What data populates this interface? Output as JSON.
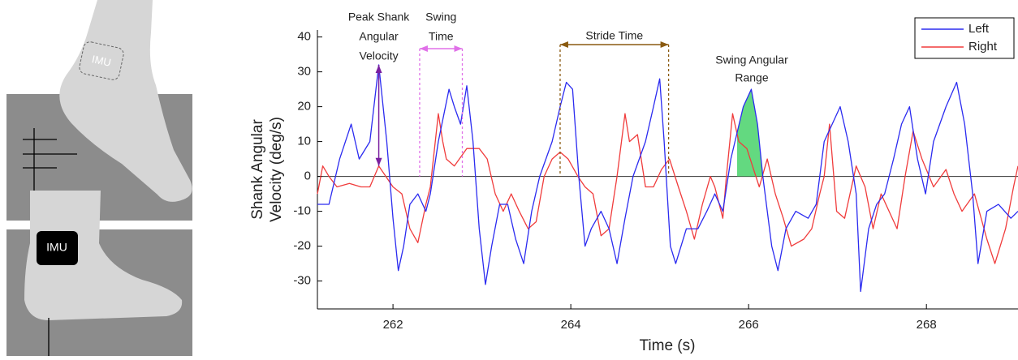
{
  "illustration": {
    "imu_labels": [
      "IMU",
      "IMU"
    ]
  },
  "chart_data": {
    "type": "line",
    "xlabel": "Time (s)",
    "ylabel": [
      "Shank Angular",
      "Velocity (deg/s)"
    ],
    "xlim": [
      261.15,
      269.03
    ],
    "xticks": [
      262,
      264,
      266,
      268
    ],
    "ylim": [
      -38,
      42
    ],
    "yticks": [
      -30,
      -20,
      -10,
      0,
      10,
      20,
      30,
      40
    ],
    "grid": false,
    "legend": "upper right",
    "series": [
      {
        "name": "Left",
        "color": "#2b2bf0",
        "x": [
          261.15,
          261.28,
          261.4,
          261.53,
          261.62,
          261.74,
          261.84,
          261.93,
          262.0,
          262.06,
          262.12,
          262.19,
          262.28,
          262.37,
          262.42,
          262.51,
          262.63,
          262.69,
          262.76,
          262.83,
          262.9,
          262.97,
          263.04,
          263.11,
          263.2,
          263.29,
          263.38,
          263.47,
          263.56,
          263.65,
          263.79,
          263.88,
          263.95,
          264.02,
          264.09,
          264.16,
          264.23,
          264.34,
          264.43,
          264.52,
          264.61,
          264.7,
          264.84,
          264.93,
          265.0,
          265.05,
          265.12,
          265.18,
          265.3,
          265.43,
          265.53,
          265.62,
          265.71,
          265.8,
          265.94,
          266.03,
          266.1,
          266.16,
          266.26,
          266.33,
          266.42,
          266.53,
          266.67,
          266.76,
          266.85,
          266.94,
          267.03,
          267.12,
          267.21,
          267.26,
          267.35,
          267.44,
          267.53,
          267.63,
          267.72,
          267.81,
          267.9,
          267.99,
          268.08,
          268.22,
          268.34,
          268.43,
          268.52,
          268.58,
          268.68,
          268.81,
          268.95,
          269.03
        ],
        "values": [
          -8,
          -8,
          5,
          15,
          5,
          10,
          32,
          10,
          -12,
          -27,
          -20,
          -8,
          -5,
          -10,
          -5,
          10,
          25,
          20,
          15,
          26,
          10,
          -15,
          -31,
          -20,
          -8,
          -8,
          -18,
          -25,
          -10,
          0,
          10,
          20,
          27,
          25,
          0,
          -20,
          -15,
          -10,
          -15,
          -25,
          -12,
          0,
          10,
          20,
          28,
          10,
          -20,
          -25,
          -15,
          -15,
          -10,
          -5,
          -10,
          5,
          20,
          25,
          15,
          0,
          -20,
          -27,
          -15,
          -10,
          -12,
          -8,
          10,
          15,
          20,
          10,
          -5,
          -33,
          -15,
          -8,
          -5,
          5,
          15,
          20,
          5,
          -5,
          10,
          20,
          27,
          15,
          -5,
          -25,
          -10,
          -8,
          -12,
          -10
        ]
      },
      {
        "name": "Right",
        "color": "#f03c3c",
        "x": [
          261.15,
          261.21,
          261.28,
          261.37,
          261.51,
          261.64,
          261.74,
          261.84,
          261.92,
          262.0,
          262.1,
          262.19,
          262.28,
          262.37,
          262.42,
          262.51,
          262.56,
          262.6,
          262.69,
          262.83,
          262.97,
          263.06,
          263.15,
          263.24,
          263.33,
          263.42,
          263.52,
          263.61,
          263.7,
          263.79,
          263.88,
          263.97,
          264.08,
          264.16,
          264.25,
          264.34,
          264.43,
          264.52,
          264.61,
          264.66,
          264.75,
          264.84,
          264.93,
          265.02,
          265.11,
          265.21,
          265.3,
          265.39,
          265.48,
          265.57,
          265.62,
          265.71,
          265.75,
          265.82,
          265.89,
          265.98,
          266.12,
          266.21,
          266.3,
          266.39,
          266.48,
          266.62,
          266.71,
          266.8,
          266.85,
          266.91,
          266.99,
          267.08,
          267.21,
          267.31,
          267.4,
          267.49,
          267.58,
          267.67,
          267.76,
          267.85,
          267.95,
          268.08,
          268.22,
          268.31,
          268.4,
          268.54,
          268.68,
          268.77,
          268.89,
          268.98,
          269.03
        ],
        "values": [
          -5,
          3,
          0,
          -3,
          -2,
          -3,
          -3,
          3,
          0,
          -3,
          -5,
          -15,
          -19,
          -8,
          -3,
          18,
          10,
          5,
          3,
          8,
          8,
          5,
          -5,
          -10,
          -5,
          -10,
          -15,
          -13,
          0,
          5,
          7,
          5,
          0,
          -3,
          -5,
          -17,
          -15,
          0,
          18,
          10,
          12,
          -3,
          -3,
          2,
          5,
          -3,
          -10,
          -18,
          -8,
          0,
          -3,
          -12,
          0,
          18,
          10,
          8,
          -3,
          5,
          -5,
          -12,
          -20,
          -18,
          -15,
          -5,
          0,
          15,
          -10,
          -12,
          3,
          -3,
          -15,
          -5,
          -10,
          -15,
          0,
          13,
          5,
          -3,
          2,
          -5,
          -10,
          -5,
          -18,
          -25,
          -15,
          -3,
          3
        ]
      }
    ],
    "annotations": [
      {
        "lines": [
          "Peak Shank",
          "Angular",
          "Velocity"
        ],
        "color": "#7a1fa0",
        "x": 261.84,
        "y": [
          3,
          32
        ]
      },
      {
        "lines": [
          "Swing",
          "Time"
        ],
        "color": "#e070e8",
        "x": [
          262.3,
          262.78
        ]
      },
      {
        "lines": [
          "Stride Time"
        ],
        "color": "#8a5a10",
        "x": [
          263.88,
          265.1
        ]
      },
      {
        "lines": [
          "Swing Angular",
          "Range"
        ],
        "color": "#3cd060",
        "x": [
          265.87,
          266.2
        ]
      }
    ]
  }
}
